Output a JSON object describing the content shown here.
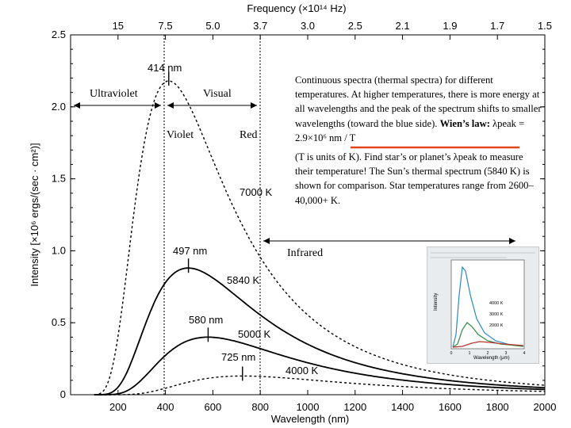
{
  "chart_data": {
    "type": "line",
    "title": "",
    "xlabel": "Wavelength (nm)",
    "ylabel": "Intensity [×10⁶ ergs/(sec · cm²)]",
    "xlim": [
      0,
      2000
    ],
    "ylim": [
      0,
      2.5
    ],
    "x_ticks": [
      "200",
      "400",
      "600",
      "800",
      "1000",
      "1200",
      "1400",
      "1600",
      "1800",
      "2000"
    ],
    "y_ticks": [
      "0",
      "0.5",
      "1.0",
      "1.5",
      "2.0",
      "2.5"
    ],
    "top_axis": {
      "label": "Frequency (×10¹⁴ Hz)",
      "ticks": [
        {
          "wavelength": 200,
          "label": "15"
        },
        {
          "wavelength": 400,
          "label": "7.5"
        },
        {
          "wavelength": 600,
          "label": "5.0"
        },
        {
          "wavelength": 800,
          "label": "3.7"
        },
        {
          "wavelength": 1000,
          "label": "3.0"
        },
        {
          "wavelength": 1200,
          "label": "2.5"
        },
        {
          "wavelength": 1400,
          "label": "2.1"
        },
        {
          "wavelength": 1600,
          "label": "1.9"
        },
        {
          "wavelength": 1800,
          "label": "1.7"
        },
        {
          "wavelength": 2000,
          "label": "1.5"
        }
      ]
    },
    "series": [
      {
        "name": "7000 K",
        "temperature": 7000,
        "peak_label": "414 nm",
        "peak_nm": 414,
        "line_style": "dashed"
      },
      {
        "name": "5840 K",
        "temperature": 5840,
        "peak_label": "497 nm",
        "peak_nm": 497,
        "line_style": "solid"
      },
      {
        "name": "5000 K",
        "temperature": 5000,
        "peak_label": "580 nm",
        "peak_nm": 580,
        "line_style": "solid"
      },
      {
        "name": "4000 K",
        "temperature": 4000,
        "peak_label": "725 nm",
        "peak_nm": 725,
        "line_style": "dashed"
      }
    ],
    "series_peaks": [
      {
        "peak_x": 414,
        "peak_y": 2.18
      },
      {
        "peak_x": 497,
        "peak_y": 0.88
      },
      {
        "peak_x": 580,
        "peak_y": 0.4
      },
      {
        "peak_x": 725,
        "peak_y": 0.13
      }
    ],
    "regions": [
      {
        "label": "Ultraviolet",
        "from": 0,
        "to": 400
      },
      {
        "label": "Visual",
        "from": 400,
        "to": 800
      },
      {
        "label": "Infrared",
        "from": 800,
        "to": 1800
      }
    ],
    "visual_edges": {
      "left_label": "Violet",
      "right_label": "Red",
      "lines_at": [
        400,
        800
      ]
    },
    "grid": false
  },
  "annotation": {
    "paragraph_1": "Continuous spectra (thermal spectra) for different temperatures. At higher temperatures, there is more energy at all wavelengths and the peak of the spectrum shifts to smaller wavelengths (toward the blue side).",
    "wien_bold": "Wien’s law:",
    "wien_formula": "λpeak = 2.9×10⁶ nm / T",
    "paragraph_2": "(T is units of K). Find star’s or planet’s λpeak to measure their temperature! The Sun’s thermal spectrum (5840 K) is shown for comparison. Star temperatures range from 2600–40,000+ K."
  },
  "inset": {
    "y_label": "Intensity",
    "x_label": "Wavelength (μm)",
    "legend": [
      "4000 K",
      "3000 K",
      "2000 K"
    ],
    "x_ticks": [
      "0",
      "1",
      "2",
      "3",
      "4"
    ],
    "colors": [
      "#2b86c6",
      "#2e8b3e",
      "#b8352b"
    ]
  },
  "colors": {
    "underline": "#e3451b",
    "ink": "#000000"
  }
}
